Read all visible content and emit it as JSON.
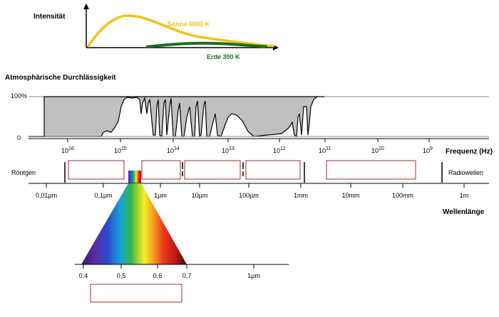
{
  "intensity": {
    "title": "Intensität",
    "sun_label": "Sonne 6000 K",
    "earth_label": "Erde 300 K",
    "sun_color": "#f2c21a",
    "earth_color": "#1a6e1a"
  },
  "transmission": {
    "title": "Atmosphärische Durchlässigkeit",
    "y_top_label": "100%",
    "y_bottom_label": "0",
    "fill_color": "#c0c0c0"
  },
  "frequency": {
    "axis_title": "Frequenz (Hz)",
    "ticks": [
      {
        "base": "10",
        "exp": "16"
      },
      {
        "base": "10",
        "exp": "15"
      },
      {
        "base": "10",
        "exp": "14"
      },
      {
        "base": "10",
        "exp": "13"
      },
      {
        "base": "10",
        "exp": "12"
      },
      {
        "base": "10",
        "exp": "11"
      },
      {
        "base": "10",
        "exp": "10"
      },
      {
        "base": "10",
        "exp": "9"
      }
    ]
  },
  "bands": {
    "left_label": "Röntgen",
    "right_label": "Radiowellen",
    "box_color": "#a52a2a"
  },
  "wavelength": {
    "axis_title": "Wellenlänge",
    "ticks": [
      "0,01µm",
      "0,1µm",
      "1µm",
      "10µm",
      "100µm",
      "1mm",
      "10mm",
      "100mm",
      "1m"
    ]
  },
  "visible": {
    "ticks": [
      "0,4",
      "0,5",
      "0,6",
      "0,7",
      "1µm"
    ]
  }
}
